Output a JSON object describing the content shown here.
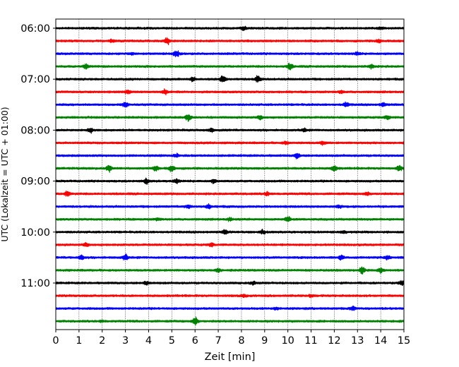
{
  "chart_data": {
    "type": "line",
    "subtype": "helicorder",
    "xlabel": "Zeit  [min]",
    "ylabel": "UTC (Lokalzeit = UTC + 01:00)",
    "xlim": [
      0,
      15
    ],
    "x_ticks": [
      "0",
      "1",
      "2",
      "3",
      "4",
      "5",
      "6",
      "7",
      "8",
      "9",
      "10",
      "11",
      "12",
      "13",
      "14",
      "15"
    ],
    "y_tick_labels": [
      "06:00",
      "07:00",
      "08:00",
      "09:00",
      "10:00",
      "11:00"
    ],
    "y_tick_rows": [
      0,
      4,
      8,
      12,
      16,
      20
    ],
    "grid": "vertical dotted at every minute",
    "rows_per_hour": 4,
    "row_count": 24,
    "color_cycle": [
      "#000000",
      "#ff0000",
      "#0000ff",
      "#008000"
    ],
    "series": [
      {
        "row": 0,
        "events": [
          [
            8.1,
            0.8
          ],
          [
            14.0,
            0.6
          ]
        ]
      },
      {
        "row": 1,
        "events": [
          [
            4.8,
            1.6
          ],
          [
            13.9,
            0.8
          ],
          [
            2.4,
            0.6
          ]
        ]
      },
      {
        "row": 2,
        "events": [
          [
            5.2,
            1.6
          ],
          [
            13.0,
            0.7
          ],
          [
            3.3,
            0.5
          ]
        ]
      },
      {
        "row": 3,
        "events": [
          [
            10.1,
            1.5
          ],
          [
            1.3,
            1.0
          ],
          [
            13.6,
            1.0
          ]
        ]
      },
      {
        "row": 4,
        "events": [
          [
            7.2,
            1.9
          ],
          [
            8.7,
            1.8
          ],
          [
            5.9,
            0.9
          ]
        ]
      },
      {
        "row": 5,
        "events": [
          [
            3.1,
            0.9
          ],
          [
            4.7,
            1.1
          ],
          [
            12.3,
            0.6
          ]
        ]
      },
      {
        "row": 6,
        "events": [
          [
            3.0,
            1.2
          ],
          [
            12.5,
            1.0
          ],
          [
            14.1,
            0.9
          ]
        ]
      },
      {
        "row": 7,
        "events": [
          [
            5.7,
            1.4
          ],
          [
            8.8,
            1.0
          ],
          [
            14.3,
            1.0
          ]
        ]
      },
      {
        "row": 8,
        "events": [
          [
            1.5,
            1.1
          ],
          [
            6.7,
            0.9
          ],
          [
            10.7,
            0.7
          ]
        ]
      },
      {
        "row": 9,
        "events": [
          [
            9.9,
            0.7
          ],
          [
            11.5,
            0.8
          ]
        ]
      },
      {
        "row": 10,
        "events": [
          [
            10.4,
            1.2
          ],
          [
            5.2,
            0.7
          ]
        ]
      },
      {
        "row": 11,
        "events": [
          [
            2.3,
            1.5
          ],
          [
            4.3,
            1.4
          ],
          [
            5.0,
            1.6
          ],
          [
            12.0,
            1.4
          ],
          [
            14.8,
            1.3
          ]
        ]
      },
      {
        "row": 12,
        "events": [
          [
            3.9,
            1.2
          ],
          [
            5.2,
            1.0
          ],
          [
            6.8,
            0.8
          ]
        ]
      },
      {
        "row": 13,
        "events": [
          [
            0.5,
            1.3
          ],
          [
            9.1,
            0.8
          ],
          [
            13.4,
            0.7
          ]
        ]
      },
      {
        "row": 14,
        "events": [
          [
            5.7,
            0.9
          ],
          [
            6.6,
            0.9
          ],
          [
            12.2,
            0.7
          ]
        ]
      },
      {
        "row": 15,
        "events": [
          [
            10.0,
            1.3
          ],
          [
            7.5,
            0.8
          ],
          [
            4.4,
            0.6
          ]
        ]
      },
      {
        "row": 16,
        "events": [
          [
            7.3,
            1.0
          ],
          [
            8.9,
            0.9
          ],
          [
            12.4,
            0.6
          ]
        ]
      },
      {
        "row": 17,
        "events": [
          [
            1.3,
            0.9
          ],
          [
            6.7,
            0.8
          ]
        ]
      },
      {
        "row": 18,
        "events": [
          [
            1.1,
            1.2
          ],
          [
            3.0,
            1.3
          ],
          [
            12.3,
            1.3
          ],
          [
            14.3,
            0.8
          ]
        ]
      },
      {
        "row": 19,
        "events": [
          [
            13.2,
            1.6
          ],
          [
            14.0,
            1.2
          ],
          [
            7.0,
            0.9
          ]
        ]
      },
      {
        "row": 20,
        "events": [
          [
            3.9,
            0.8
          ],
          [
            14.9,
            1.0
          ],
          [
            8.5,
            0.7
          ]
        ]
      },
      {
        "row": 21,
        "events": [
          [
            8.1,
            0.6
          ],
          [
            11.0,
            0.6
          ]
        ]
      },
      {
        "row": 22,
        "events": [
          [
            12.8,
            0.9
          ],
          [
            9.5,
            0.6
          ]
        ]
      },
      {
        "row": 23,
        "events": [
          [
            6.0,
            1.9
          ],
          [
            2.0,
            0.4
          ]
        ]
      }
    ]
  }
}
